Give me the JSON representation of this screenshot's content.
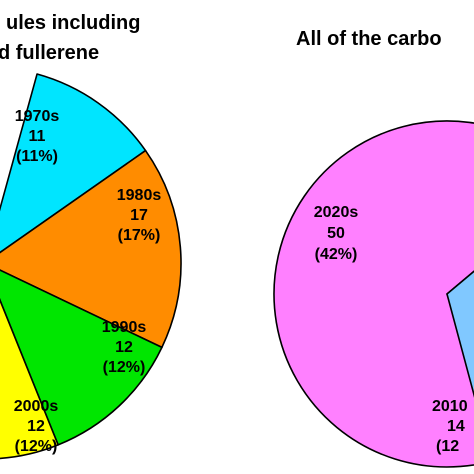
{
  "chart_data": [
    {
      "type": "pie",
      "title_lines": [
        "ules including",
        "d fullerene"
      ],
      "slices": [
        {
          "label": "1970s",
          "value": 11,
          "percent": "(11%)",
          "color": "#00e5ff"
        },
        {
          "label": "1980s",
          "value": 17,
          "percent": "(17%)",
          "color": "#ff8c00"
        },
        {
          "label": "1990s",
          "value": 12,
          "percent": "(12%)",
          "color": "#00e600"
        },
        {
          "label": "2000s",
          "value": 12,
          "percent": "(12%)",
          "color": "#ffff00"
        }
      ]
    },
    {
      "type": "pie",
      "title_lines": [
        "All of the carbo"
      ],
      "slices": [
        {
          "label": "2020s",
          "value": 50,
          "percent": "(42%)",
          "color": "#ff80ff"
        },
        {
          "label": "2010",
          "value": 14,
          "percent": "(12",
          "color": "#80c8ff"
        }
      ]
    }
  ]
}
